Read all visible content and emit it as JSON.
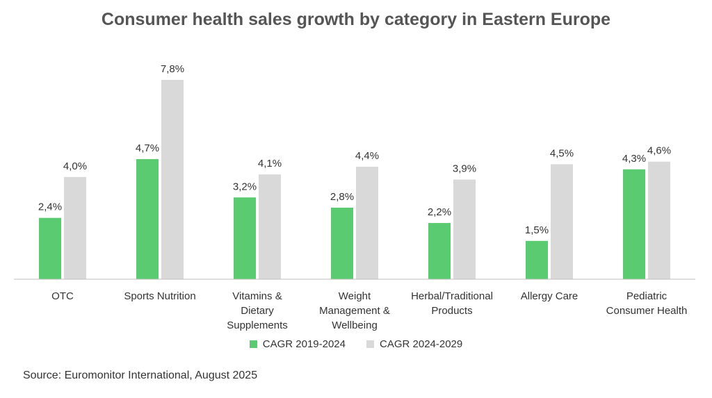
{
  "chart_data": {
    "type": "bar",
    "title": "Consumer health sales growth by category in Eastern Europe",
    "categories": [
      [
        "OTC"
      ],
      [
        "Sports Nutrition"
      ],
      [
        "Vitamins &",
        "Dietary",
        "Supplements"
      ],
      [
        "Weight",
        "Management &",
        "Wellbeing"
      ],
      [
        "Herbal/Traditional",
        "Products"
      ],
      [
        "Allergy Care"
      ],
      [
        "Pediatric",
        "Consumer Health"
      ]
    ],
    "series": [
      {
        "name": "CAGR 2019-2024",
        "color": "#5bcb72",
        "values": [
          2.4,
          4.7,
          3.2,
          2.8,
          2.2,
          1.5,
          4.3
        ],
        "labels": [
          "2,4%",
          "4,7%",
          "3,2%",
          "2,8%",
          "2,2%",
          "1,5%",
          "4,3%"
        ]
      },
      {
        "name": "CAGR 2024-2029",
        "color": "#d9d9d9",
        "values": [
          4.0,
          7.8,
          4.1,
          4.4,
          3.9,
          4.5,
          4.6
        ],
        "labels": [
          "4,0%",
          "7,8%",
          "4,1%",
          "4,4%",
          "3,9%",
          "4,5%",
          "4,6%"
        ]
      }
    ],
    "ylim": [
      0,
      7.8
    ],
    "legend_position": "bottom",
    "grid": false
  },
  "source": "Source: Euromonitor International, August 2025"
}
